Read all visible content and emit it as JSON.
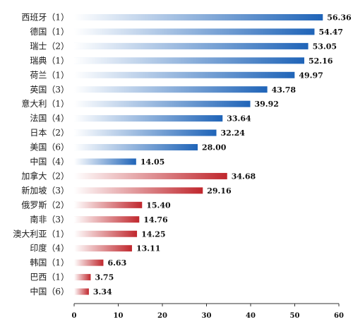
{
  "chart_data": {
    "type": "bar",
    "orientation": "horizontal",
    "categories": [
      "西班牙（1）",
      "德国（1）",
      "瑞士（2）",
      "瑞典（1）",
      "荷兰（1）",
      "英国（3）",
      "意大利（1）",
      "法国（4）",
      "日本（2）",
      "美国（6）",
      "中国（4）",
      "加拿大（2）",
      "新加坡（3）",
      "俄罗斯（2）",
      "南非（3）",
      "澳大利亚（1）",
      "印度（4）",
      "韩国（1）",
      "巴西（1）",
      "中国（6）"
    ],
    "values": [
      56.36,
      54.47,
      53.05,
      52.16,
      49.97,
      43.78,
      39.92,
      33.64,
      32.24,
      28.0,
      14.05,
      34.68,
      29.16,
      15.4,
      14.76,
      14.25,
      13.11,
      6.63,
      3.75,
      3.34
    ],
    "value_labels": [
      "56.36",
      "54.47",
      "53.05",
      "52.16",
      "49.97",
      "43.78",
      "39.92",
      "33.64",
      "32.24",
      "28.00",
      "14.05",
      "34.68",
      "29.16",
      "15.40",
      "14.76",
      "14.25",
      "13.11",
      "6.63",
      "3.75",
      "3.34"
    ],
    "groups": [
      "blue",
      "blue",
      "blue",
      "blue",
      "blue",
      "blue",
      "blue",
      "blue",
      "blue",
      "blue",
      "blue",
      "red",
      "red",
      "red",
      "red",
      "red",
      "red",
      "red",
      "red",
      "red"
    ],
    "colors": {
      "blue": "#1f64b8",
      "red": "#c0272d"
    },
    "xlim": [
      0,
      60
    ],
    "xticks": [
      0,
      10,
      20,
      30,
      40,
      50,
      60
    ],
    "title": "",
    "xlabel": "",
    "ylabel": "",
    "grid": false,
    "legend": "none"
  }
}
